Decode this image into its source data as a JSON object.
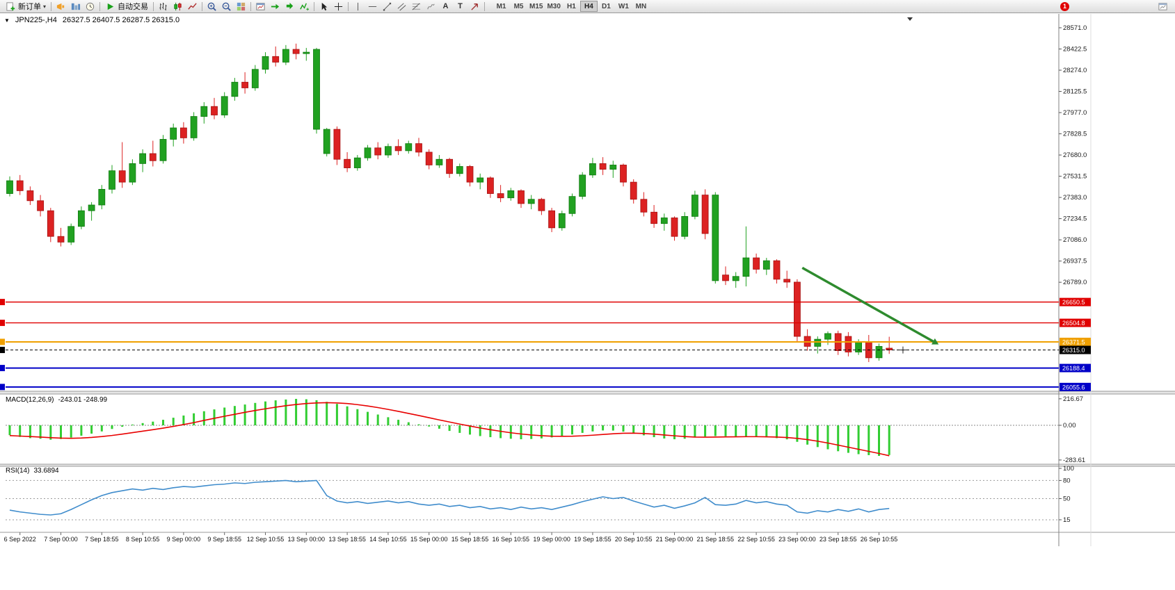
{
  "toolbar": {
    "new_order_label": "新订单",
    "auto_trading_label": "自动交易",
    "text_tool_label": "A",
    "label_tool_label": "T",
    "timeframes": [
      "M1",
      "M5",
      "M15",
      "M30",
      "H1",
      "H4",
      "D1",
      "W1",
      "MN"
    ],
    "active_timeframe": "H4",
    "notification_count": "1"
  },
  "chart": {
    "symbol_period": "JPN225-,H4",
    "ohlc_values": "26327.5 26407.5 26287.5 26315.0"
  },
  "chart_data": {
    "type": "candlestick",
    "symbol": "JPN225-",
    "timeframe": "H4",
    "current": {
      "open": 26327.5,
      "high": 26407.5,
      "low": 26287.5,
      "close": 26315.0
    },
    "price_axis": {
      "labels": [
        "28571.0",
        "28422.5",
        "28274.0",
        "28125.5",
        "27977.0",
        "27828.5",
        "27680.0",
        "27531.5",
        "27383.0",
        "27234.5",
        "27086.0",
        "26937.5",
        "26789.0"
      ]
    },
    "candles": [
      [
        27410,
        27530,
        27390,
        27500
      ],
      [
        27500,
        27540,
        27400,
        27430
      ],
      [
        27430,
        27460,
        27330,
        27360
      ],
      [
        27360,
        27400,
        27250,
        27290
      ],
      [
        27290,
        27310,
        27070,
        27110
      ],
      [
        27110,
        27170,
        27040,
        27070
      ],
      [
        27070,
        27200,
        27050,
        27180
      ],
      [
        27180,
        27320,
        27160,
        27290
      ],
      [
        27290,
        27350,
        27220,
        27330
      ],
      [
        27330,
        27470,
        27300,
        27440
      ],
      [
        27440,
        27610,
        27410,
        27570
      ],
      [
        27570,
        27770,
        27450,
        27490
      ],
      [
        27490,
        27650,
        27470,
        27620
      ],
      [
        27620,
        27720,
        27560,
        27690
      ],
      [
        27690,
        27780,
        27600,
        27640
      ],
      [
        27640,
        27820,
        27620,
        27790
      ],
      [
        27790,
        27900,
        27740,
        27870
      ],
      [
        27870,
        27910,
        27760,
        27800
      ],
      [
        27800,
        27980,
        27780,
        27950
      ],
      [
        27950,
        28050,
        27900,
        28020
      ],
      [
        28020,
        28080,
        27930,
        27960
      ],
      [
        27960,
        28120,
        27940,
        28090
      ],
      [
        28090,
        28220,
        28060,
        28190
      ],
      [
        28190,
        28260,
        28110,
        28150
      ],
      [
        28150,
        28310,
        28130,
        28280
      ],
      [
        28280,
        28400,
        28250,
        28370
      ],
      [
        28370,
        28440,
        28300,
        28330
      ],
      [
        28330,
        28450,
        28310,
        28420
      ],
      [
        28420,
        28460,
        28350,
        28390
      ],
      [
        28390,
        28430,
        28340,
        28400
      ],
      [
        27860,
        28430,
        27830,
        28420
      ],
      [
        27690,
        27870,
        27670,
        27860
      ],
      [
        27860,
        27880,
        27610,
        27650
      ],
      [
        27650,
        27700,
        27560,
        27590
      ],
      [
        27590,
        27680,
        27570,
        27660
      ],
      [
        27660,
        27750,
        27640,
        27730
      ],
      [
        27730,
        27770,
        27650,
        27680
      ],
      [
        27680,
        27760,
        27660,
        27740
      ],
      [
        27740,
        27790,
        27680,
        27710
      ],
      [
        27710,
        27780,
        27690,
        27760
      ],
      [
        27760,
        27800,
        27670,
        27700
      ],
      [
        27700,
        27720,
        27580,
        27610
      ],
      [
        27610,
        27680,
        27590,
        27650
      ],
      [
        27650,
        27660,
        27520,
        27550
      ],
      [
        27550,
        27620,
        27530,
        27600
      ],
      [
        27600,
        27610,
        27460,
        27490
      ],
      [
        27490,
        27550,
        27440,
        27520
      ],
      [
        27520,
        27530,
        27380,
        27410
      ],
      [
        27410,
        27470,
        27350,
        27380
      ],
      [
        27380,
        27450,
        27360,
        27430
      ],
      [
        27430,
        27440,
        27310,
        27340
      ],
      [
        27340,
        27400,
        27300,
        27370
      ],
      [
        27370,
        27380,
        27260,
        27290
      ],
      [
        27290,
        27310,
        27140,
        27170
      ],
      [
        27170,
        27290,
        27150,
        27270
      ],
      [
        27270,
        27410,
        27250,
        27390
      ],
      [
        27390,
        27560,
        27370,
        27540
      ],
      [
        27540,
        27660,
        27520,
        27620
      ],
      [
        27620,
        27665,
        27540,
        27580
      ],
      [
        27580,
        27640,
        27520,
        27610
      ],
      [
        27610,
        27620,
        27460,
        27490
      ],
      [
        27490,
        27510,
        27340,
        27370
      ],
      [
        27370,
        27420,
        27250,
        27280
      ],
      [
        27280,
        27330,
        27170,
        27200
      ],
      [
        27200,
        27270,
        27150,
        27240
      ],
      [
        27240,
        27250,
        27080,
        27110
      ],
      [
        27110,
        27280,
        27090,
        27250
      ],
      [
        27250,
        27430,
        27230,
        27400
      ],
      [
        27400,
        27440,
        27090,
        27130
      ],
      [
        26800,
        27420,
        26780,
        27400
      ],
      [
        26840,
        26900,
        26770,
        26800
      ],
      [
        26800,
        26860,
        26750,
        26830
      ],
      [
        26830,
        27180,
        26760,
        26960
      ],
      [
        26960,
        26990,
        26850,
        26880
      ],
      [
        26880,
        26960,
        26840,
        26940
      ],
      [
        26940,
        26950,
        26780,
        26810
      ],
      [
        26810,
        26870,
        26750,
        26790
      ],
      [
        26790,
        26810,
        26370,
        26410
      ],
      [
        26410,
        26460,
        26310,
        26340
      ],
      [
        26340,
        26410,
        26290,
        26390
      ],
      [
        26390,
        26445,
        26350,
        26430
      ],
      [
        26430,
        26450,
        26280,
        26310
      ],
      [
        26410,
        26440,
        26270,
        26300
      ],
      [
        26300,
        26390,
        26280,
        26370
      ],
      [
        26370,
        26420,
        26230,
        26260
      ],
      [
        26260,
        26360,
        26240,
        26340
      ],
      [
        26327.5,
        26407.5,
        26287.5,
        26315.0
      ]
    ],
    "hlines": [
      {
        "label": "26650.5",
        "price": 26650.5,
        "color": "#e00000",
        "width": 1.4,
        "style": "solid"
      },
      {
        "label": "26504.8",
        "price": 26504.8,
        "color": "#e00000",
        "width": 1.4,
        "style": "solid"
      },
      {
        "label": "26371.5",
        "price": 26371.5,
        "color": "#f0a000",
        "width": 2,
        "style": "solid"
      },
      {
        "label": "26315.0",
        "price": 26315.0,
        "color": "#000000",
        "width": 1,
        "style": "dashed"
      },
      {
        "label": "26188.4",
        "price": 26188.4,
        "color": "#0000c8",
        "width": 2,
        "style": "solid"
      },
      {
        "label": "26055.6",
        "price": 26055.6,
        "color": "#0000c8",
        "width": 2,
        "style": "solid"
      }
    ],
    "arrow": {
      "from_bar": 77.5,
      "from_price": 26890,
      "to_bar": 90.3,
      "to_price": 26375,
      "color": "#2e8b2e"
    },
    "time_labels": [
      "6 Sep 2022",
      "7 Sep 00:00",
      "7 Sep 18:55",
      "8 Sep 10:55",
      "9 Sep 00:00",
      "9 Sep 18:55",
      "12 Sep 10:55",
      "13 Sep 00:00",
      "13 Sep 18:55",
      "14 Sep 10:55",
      "15 Sep 00:00",
      "15 Sep 18:55",
      "16 Sep 10:55",
      "19 Sep 00:00",
      "19 Sep 18:55",
      "20 Sep 10:55",
      "21 Sep 00:00",
      "21 Sep 18:55",
      "22 Sep 10:55",
      "23 Sep 00:00",
      "23 Sep 18:55",
      "26 Sep 10:55"
    ],
    "macd": {
      "name": "MACD(12,26,9)",
      "values_text": "-243.01 -248.99",
      "axis_labels": [
        "216.67",
        "0.00",
        "-283.61"
      ],
      "histogram": [
        -80,
        -95,
        -105,
        -110,
        -118,
        -112,
        -100,
        -85,
        -68,
        -50,
        -30,
        -12,
        6,
        18,
        30,
        45,
        62,
        80,
        98,
        115,
        130,
        145,
        158,
        170,
        183,
        195,
        204,
        211,
        216,
        213,
        205,
        192,
        175,
        155,
        132,
        110,
        88,
        66,
        45,
        25,
        8,
        -10,
        -28,
        -46,
        -62,
        -76,
        -88,
        -97,
        -105,
        -110,
        -114,
        -112,
        -107,
        -99,
        -88,
        -75,
        -62,
        -50,
        -42,
        -43,
        -52,
        -66,
        -82,
        -97,
        -108,
        -114,
        -110,
        -100,
        -92,
        -88,
        -90,
        -94,
        -92,
        -94,
        -98,
        -105,
        -115,
        -135,
        -158,
        -178,
        -196,
        -212,
        -225,
        -236,
        -244,
        -250,
        -243
      ],
      "signal": [
        -84,
        -88,
        -92,
        -96,
        -101,
        -105,
        -106,
        -104,
        -99,
        -92,
        -83,
        -72,
        -60,
        -48,
        -36,
        -23,
        -9,
        6,
        22,
        40,
        57,
        74,
        90,
        106,
        121,
        135,
        148,
        160,
        170,
        178,
        183,
        185,
        183,
        178,
        169,
        158,
        145,
        130,
        114,
        97,
        80,
        62,
        44,
        27,
        10,
        -6,
        -22,
        -36,
        -49,
        -61,
        -71,
        -79,
        -85,
        -89,
        -90,
        -89,
        -86,
        -81,
        -75,
        -69,
        -65,
        -64,
        -67,
        -72,
        -79,
        -86,
        -92,
        -96,
        -97,
        -96,
        -95,
        -94,
        -93,
        -93,
        -94,
        -96,
        -100,
        -107,
        -117,
        -130,
        -145,
        -162,
        -179,
        -196,
        -213,
        -230,
        -249
      ]
    },
    "rsi": {
      "name": "RSI(14)",
      "value_text": "33.6894",
      "levels": [
        80,
        50,
        15
      ],
      "axis_labels": [
        "100",
        "80",
        "50",
        "15"
      ],
      "values": [
        31,
        28,
        26,
        24,
        23,
        25,
        32,
        40,
        48,
        55,
        60,
        63,
        66,
        64,
        67,
        65,
        68,
        70,
        69,
        71,
        73,
        74,
        76,
        75,
        77,
        78,
        79,
        80,
        78,
        79,
        80,
        55,
        46,
        43,
        45,
        42,
        44,
        46,
        43,
        45,
        41,
        39,
        41,
        37,
        39,
        35,
        37,
        33,
        35,
        32,
        36,
        33,
        35,
        32,
        36,
        40,
        45,
        49,
        53,
        50,
        52,
        46,
        41,
        36,
        39,
        34,
        38,
        43,
        52,
        40,
        39,
        41,
        47,
        43,
        45,
        41,
        39,
        28,
        26,
        30,
        28,
        32,
        29,
        33,
        28,
        32,
        33.69
      ]
    }
  }
}
